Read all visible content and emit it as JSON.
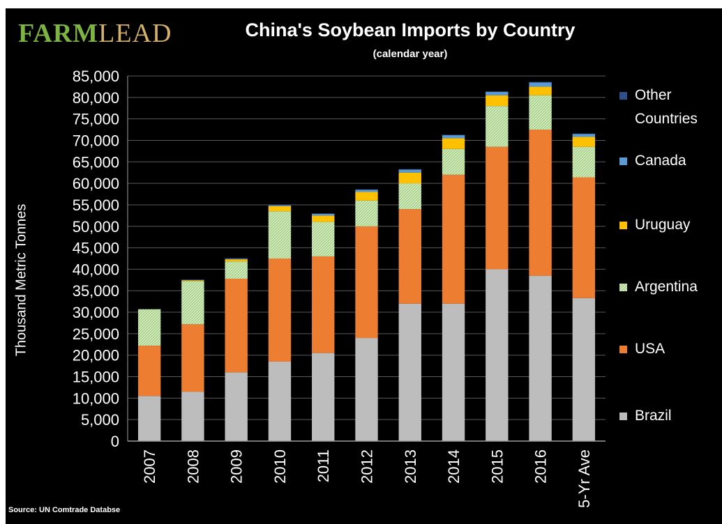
{
  "header": {
    "logo_part1": "FARM",
    "logo_part2": "LEAD"
  },
  "footer": {
    "source": "Source: UN Comtrade Databse"
  },
  "colors": {
    "background": "#000000",
    "gridline": "#5a5a5a",
    "Brazil": "#bdbdbd",
    "USA": "#ed7d31",
    "Argentina": "#c6e0b4",
    "Uruguay": "#ffc000",
    "Canada": "#5b9bd5",
    "Other Countries": "#2f4f8a"
  },
  "chart_data": {
    "type": "bar",
    "stacked": true,
    "title": "China's Soybean Imports by Country",
    "subtitle": "(calendar year)",
    "xlabel": "",
    "ylabel": "Thousand Metric Tonnes",
    "ylim": [
      0,
      85000
    ],
    "yticks": [
      "0",
      "5,000",
      "10,000",
      "15,000",
      "20,000",
      "25,000",
      "30,000",
      "35,000",
      "40,000",
      "45,000",
      "50,000",
      "55,000",
      "60,000",
      "65,000",
      "70,000",
      "75,000",
      "80,000",
      "85,000"
    ],
    "grid": true,
    "legend_position": "right",
    "categories": [
      "2007",
      "2008",
      "2009",
      "2010",
      "2011",
      "2012",
      "2013",
      "2014",
      "2015",
      "2016",
      "5-Yr Ave"
    ],
    "series": [
      {
        "name": "Brazil",
        "values": [
          10500,
          11500,
          16000,
          18500,
          20500,
          24000,
          32000,
          32000,
          40000,
          38500,
          33300
        ]
      },
      {
        "name": "USA",
        "values": [
          11700,
          15700,
          21800,
          24000,
          22500,
          26000,
          22000,
          30000,
          28500,
          34000,
          28100
        ]
      },
      {
        "name": "Argentina",
        "values": [
          8500,
          10000,
          4000,
          11000,
          8000,
          6000,
          6000,
          6000,
          9500,
          8000,
          7100
        ]
      },
      {
        "name": "Uruguay",
        "values": [
          0,
          200,
          500,
          1200,
          1500,
          2000,
          2500,
          2500,
          2500,
          2000,
          2300
        ]
      },
      {
        "name": "Canada",
        "values": [
          0,
          100,
          150,
          200,
          400,
          500,
          700,
          700,
          800,
          1000,
          700
        ]
      },
      {
        "name": "Other Countries",
        "values": [
          0,
          100,
          100,
          100,
          100,
          100,
          100,
          100,
          100,
          100,
          100
        ]
      }
    ]
  }
}
